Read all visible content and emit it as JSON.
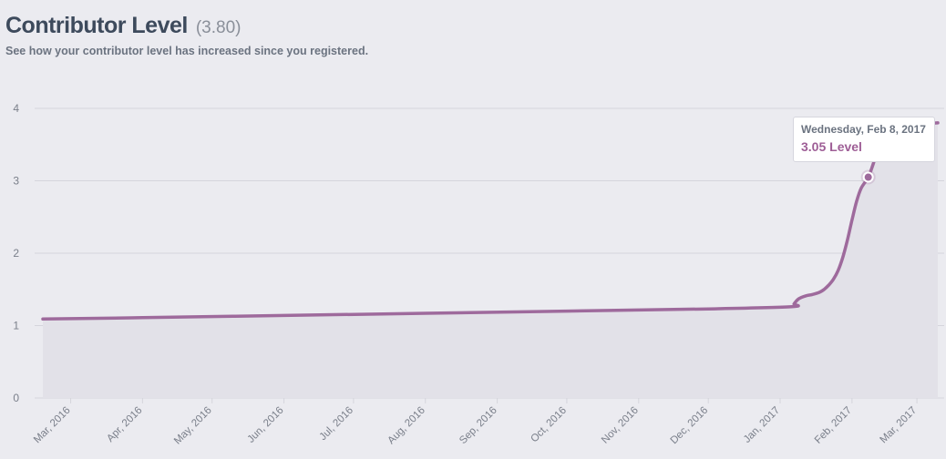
{
  "header": {
    "title": "Contributor Level",
    "current_level": "(3.80)",
    "subtitle": "See how your contributor level has increased since you registered."
  },
  "colors": {
    "line": "#9e6a9c",
    "area": "#e2e1e8",
    "grid": "#d5d5dc",
    "axis_text": "#7a7f8a"
  },
  "tooltip": {
    "date": "Wednesday, Feb 8, 2017",
    "value": "3.05",
    "unit": "Level"
  },
  "chart_data": {
    "type": "area",
    "title": "Contributor Level",
    "xlabel": "",
    "ylabel": "",
    "ylim": [
      0,
      4
    ],
    "y_ticks": [
      "0",
      "1",
      "2",
      "3",
      "4"
    ],
    "x_tick_labels": [
      "Mar, 2016",
      "Apr, 2016",
      "May, 2016",
      "Jun, 2016",
      "Jul, 2016",
      "Aug, 2016",
      "Sep, 2016",
      "Oct, 2016",
      "Nov, 2016",
      "Dec, 2016",
      "Jan, 2017",
      "Feb, 2017",
      "Mar, 2017"
    ],
    "x_tick_dates": [
      "2016-03-01",
      "2016-04-01",
      "2016-05-01",
      "2016-06-01",
      "2016-07-01",
      "2016-08-01",
      "2016-09-01",
      "2016-10-01",
      "2016-11-01",
      "2016-12-01",
      "2017-01-01",
      "2017-02-01",
      "2017-03-01"
    ],
    "grid": true,
    "series": [
      {
        "x": [
          "2016-02-18",
          "2016-04-01",
          "2016-06-01",
          "2016-08-01",
          "2016-10-01",
          "2016-12-01",
          "2017-01-06",
          "2017-01-07",
          "2017-01-09",
          "2017-01-12",
          "2017-01-15",
          "2017-01-18",
          "2017-01-20",
          "2017-01-22",
          "2017-01-24",
          "2017-01-26",
          "2017-01-28",
          "2017-01-30",
          "2017-02-01",
          "2017-02-03",
          "2017-02-05",
          "2017-02-08",
          "2017-02-10",
          "2017-02-12",
          "2017-02-14",
          "2017-02-17",
          "2017-02-20",
          "2017-02-24",
          "2017-03-01",
          "2017-03-06",
          "2017-03-10"
        ],
        "y": [
          1.09,
          1.11,
          1.14,
          1.17,
          1.2,
          1.23,
          1.26,
          1.3,
          1.37,
          1.41,
          1.43,
          1.46,
          1.5,
          1.56,
          1.64,
          1.76,
          1.94,
          2.18,
          2.46,
          2.72,
          2.9,
          3.05,
          3.22,
          3.42,
          3.58,
          3.68,
          3.72,
          3.75,
          3.77,
          3.79,
          3.8
        ]
      }
    ],
    "highlight": {
      "x": "2017-02-08",
      "y": 3.05
    }
  }
}
